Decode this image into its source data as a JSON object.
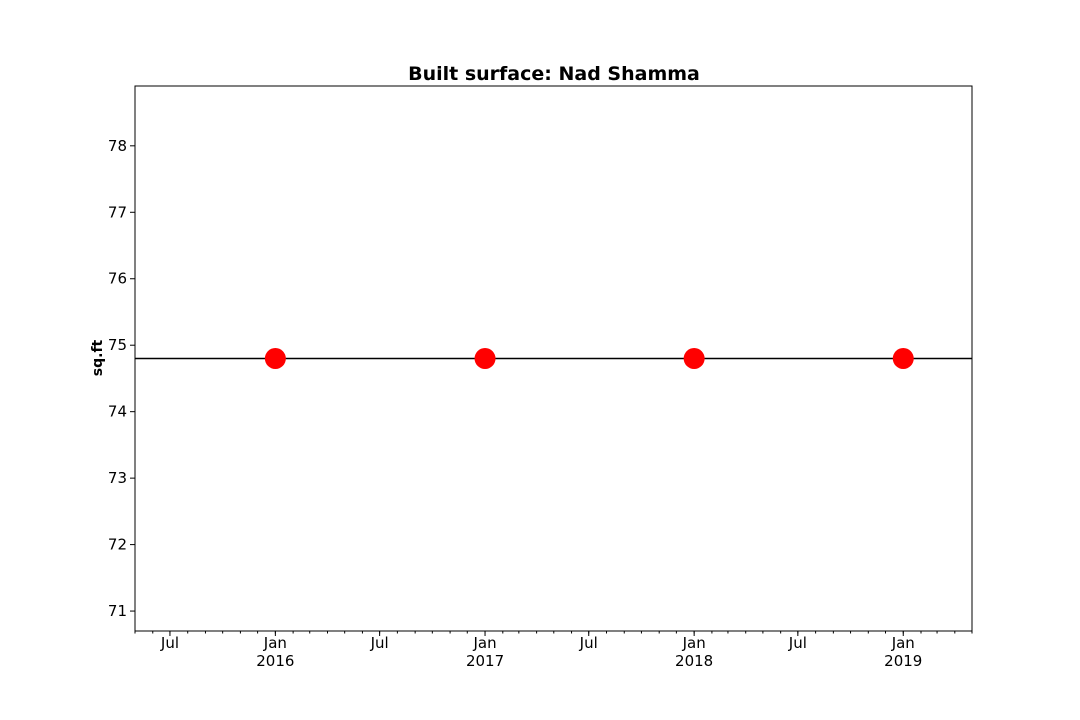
{
  "chart_data": {
    "type": "scatter",
    "title": "Built surface: Nad Shamma",
    "xlabel": "",
    "ylabel": "sq.ft",
    "x_axis": "date",
    "xlim": [
      "2015-05-01",
      "2019-05-01"
    ],
    "ylim": [
      70.7,
      78.9
    ],
    "y_ticks": [
      71,
      72,
      73,
      74,
      75,
      76,
      77,
      78
    ],
    "x_major_ticks": [
      {
        "date": "2015-07-01",
        "label": "Jul"
      },
      {
        "date": "2016-01-01",
        "label": "Jan",
        "sublabel": "2016"
      },
      {
        "date": "2016-07-01",
        "label": "Jul"
      },
      {
        "date": "2017-01-01",
        "label": "Jan",
        "sublabel": "2017"
      },
      {
        "date": "2017-07-01",
        "label": "Jul"
      },
      {
        "date": "2018-01-01",
        "label": "Jan",
        "sublabel": "2018"
      },
      {
        "date": "2018-07-01",
        "label": "Jul"
      },
      {
        "date": "2019-01-01",
        "label": "Jan",
        "sublabel": "2019"
      }
    ],
    "series": [
      {
        "x": [
          "2016-01-01",
          "2017-01-01",
          "2018-01-01",
          "2019-01-01"
        ],
        "y": [
          74.8,
          74.8,
          74.8,
          74.8
        ],
        "color": "#ff0000",
        "marker": "circle"
      }
    ],
    "reference_line": {
      "y": 74.8,
      "color": "#000000"
    },
    "grid": false,
    "legend": "none"
  }
}
